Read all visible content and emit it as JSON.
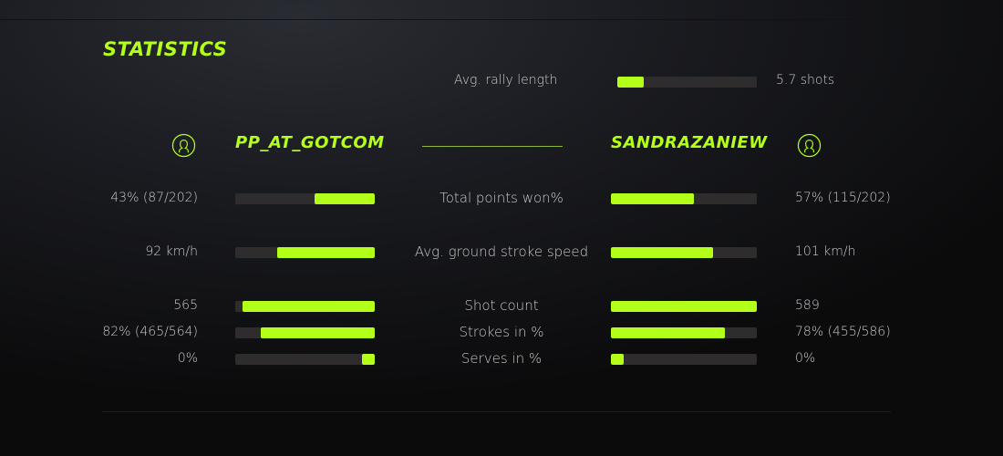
{
  "title": "STATISTICS",
  "accent": "#b3ff1a",
  "rally": {
    "label": "Avg. rally length",
    "value": "5.7 shots",
    "fill_pct": 19
  },
  "players": {
    "left": {
      "name": "PP_AT_GOTCOM",
      "icon": "user-icon"
    },
    "right": {
      "name": "SANDRAZANIEW",
      "icon": "user-icon"
    }
  },
  "stats": [
    {
      "label": "Total points won%",
      "left": "43% (87/202)",
      "right": "57% (115/202)",
      "left_pct": 43,
      "right_pct": 57
    },
    {
      "label": "Avg. ground stroke speed",
      "left": "92 km/h",
      "right": "101 km/h",
      "left_pct": 70,
      "right_pct": 70
    },
    {
      "label": "Shot count",
      "left": "565",
      "right": "589",
      "left_pct": 95,
      "right_pct": 100
    },
    {
      "label": "Strokes in %",
      "left": "82% (465/564)",
      "right": "78% (455/586)",
      "left_pct": 82,
      "right_pct": 78
    },
    {
      "label": "Serves in %",
      "left": "0%",
      "right": "0%",
      "left_pct": 9,
      "right_pct": 9
    }
  ]
}
